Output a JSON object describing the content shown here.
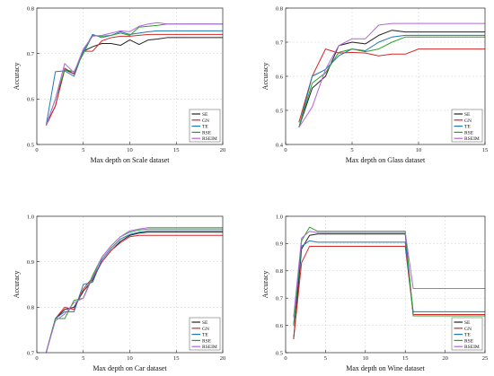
{
  "chart_data": [
    {
      "type": "line",
      "xlabel": "Max depth on Scale dataset",
      "ylabel": "Accuracy",
      "xlim": [
        0,
        20
      ],
      "ylim": [
        0.5,
        0.8
      ],
      "xticks": [
        0,
        5,
        10,
        15,
        20
      ],
      "yticks": [
        0.5,
        0.6,
        0.7,
        0.8
      ],
      "ytick_labels": [
        "0.5",
        "0.6",
        "0.7",
        "0.8"
      ],
      "grid": true,
      "legend": "bottom-right",
      "series": [
        {
          "name": "SE",
          "color": "#222222",
          "x": [
            1,
            2,
            3,
            4,
            5,
            6,
            7,
            8,
            9,
            10,
            11,
            12,
            13,
            14,
            15,
            16,
            17,
            18,
            19,
            20
          ],
          "y": [
            0.542,
            0.585,
            0.665,
            0.655,
            0.705,
            0.715,
            0.722,
            0.722,
            0.718,
            0.73,
            0.72,
            0.73,
            0.732,
            0.735,
            0.735,
            0.735,
            0.735,
            0.735,
            0.735,
            0.735
          ]
        },
        {
          "name": "GN",
          "color": "#d62728",
          "x": [
            1,
            2,
            3,
            4,
            5,
            6,
            7,
            8,
            9,
            10,
            11,
            12,
            13,
            14,
            15,
            16,
            17,
            18,
            19,
            20
          ],
          "y": [
            0.542,
            0.585,
            0.668,
            0.655,
            0.705,
            0.705,
            0.728,
            0.735,
            0.738,
            0.738,
            0.74,
            0.742,
            0.742,
            0.742,
            0.742,
            0.742,
            0.742,
            0.742,
            0.742,
            0.742
          ]
        },
        {
          "name": "TE",
          "color": "#1f77b4",
          "x": [
            1,
            2,
            3,
            4,
            5,
            6,
            7,
            8,
            9,
            10,
            11,
            12,
            13,
            14,
            15,
            16,
            17,
            18,
            19,
            20
          ],
          "y": [
            0.542,
            0.66,
            0.662,
            0.65,
            0.705,
            0.742,
            0.735,
            0.74,
            0.748,
            0.742,
            0.745,
            0.748,
            0.75,
            0.75,
            0.75,
            0.75,
            0.75,
            0.75,
            0.75,
            0.75
          ]
        },
        {
          "name": "RSE",
          "color": "#2ca02c",
          "x": [
            1,
            2,
            3,
            4,
            5,
            6,
            7,
            8,
            9,
            10,
            11,
            12,
            13,
            14,
            15,
            16,
            17,
            18,
            19,
            20
          ],
          "y": [
            0.542,
            0.6,
            0.665,
            0.66,
            0.7,
            0.74,
            0.738,
            0.74,
            0.745,
            0.74,
            0.758,
            0.76,
            0.762,
            0.765,
            0.765,
            0.765,
            0.765,
            0.765,
            0.765,
            0.765
          ]
        },
        {
          "name": "RSEIM",
          "color": "#b266dd",
          "x": [
            1,
            2,
            3,
            4,
            5,
            6,
            7,
            8,
            9,
            10,
            11,
            12,
            13,
            14,
            15,
            16,
            17,
            18,
            19,
            20
          ],
          "y": [
            0.542,
            0.6,
            0.678,
            0.658,
            0.71,
            0.738,
            0.74,
            0.745,
            0.75,
            0.748,
            0.76,
            0.765,
            0.768,
            0.765,
            0.765,
            0.765,
            0.765,
            0.765,
            0.765,
            0.765
          ]
        }
      ]
    },
    {
      "type": "line",
      "xlabel": "Max depth on Glass dataset",
      "ylabel": "Accuracy",
      "xlim": [
        0,
        15
      ],
      "ylim": [
        0.4,
        0.8
      ],
      "xticks": [
        0,
        5,
        10,
        15
      ],
      "yticks": [
        0.4,
        0.5,
        0.6,
        0.7,
        0.8
      ],
      "ytick_labels": [
        "0.4",
        "0.5",
        "0.6",
        "0.7",
        "0.8"
      ],
      "grid": true,
      "legend": "bottom-right",
      "series": [
        {
          "name": "SE",
          "color": "#222222",
          "x": [
            1,
            2,
            3,
            4,
            5,
            6,
            7,
            8,
            9,
            10,
            11,
            12,
            13,
            14,
            15
          ],
          "y": [
            0.45,
            0.565,
            0.6,
            0.69,
            0.7,
            0.695,
            0.72,
            0.735,
            0.73,
            0.73,
            0.73,
            0.73,
            0.73,
            0.73,
            0.73
          ]
        },
        {
          "name": "GN",
          "color": "#d62728",
          "x": [
            1,
            2,
            3,
            4,
            5,
            6,
            7,
            8,
            9,
            10,
            11,
            12,
            13,
            14,
            15
          ],
          "y": [
            0.465,
            0.6,
            0.68,
            0.668,
            0.67,
            0.668,
            0.66,
            0.665,
            0.665,
            0.68,
            0.68,
            0.68,
            0.68,
            0.68,
            0.68
          ]
        },
        {
          "name": "TE",
          "color": "#1f77b4",
          "x": [
            1,
            2,
            3,
            4,
            5,
            6,
            7,
            8,
            9,
            10,
            11,
            12,
            13,
            14,
            15
          ],
          "y": [
            0.45,
            0.6,
            0.62,
            0.66,
            0.68,
            0.675,
            0.7,
            0.715,
            0.72,
            0.72,
            0.72,
            0.72,
            0.72,
            0.72,
            0.72
          ]
        },
        {
          "name": "RSE",
          "color": "#2ca02c",
          "x": [
            1,
            2,
            3,
            4,
            5,
            6,
            7,
            8,
            9,
            10,
            11,
            12,
            13,
            14,
            15
          ],
          "y": [
            0.45,
            0.58,
            0.61,
            0.67,
            0.68,
            0.672,
            0.68,
            0.7,
            0.715,
            0.715,
            0.715,
            0.715,
            0.715,
            0.715,
            0.715
          ]
        },
        {
          "name": "RSEIM",
          "color": "#b266dd",
          "x": [
            1,
            2,
            3,
            4,
            5,
            6,
            7,
            8,
            9,
            10,
            11,
            12,
            13,
            14,
            15
          ],
          "y": [
            0.45,
            0.51,
            0.62,
            0.69,
            0.71,
            0.71,
            0.75,
            0.755,
            0.755,
            0.755,
            0.755,
            0.755,
            0.755,
            0.755,
            0.755
          ]
        }
      ]
    },
    {
      "type": "line",
      "xlabel": "Max depth on Car dataset",
      "ylabel": "Accuracy",
      "xlim": [
        0,
        20
      ],
      "ylim": [
        0.7,
        1.0
      ],
      "xticks": [
        0,
        5,
        10,
        15,
        20
      ],
      "yticks": [
        0.7,
        0.8,
        0.9,
        1.0
      ],
      "ytick_labels": [
        "0.7",
        "0.8",
        "0.9",
        "1.0"
      ],
      "grid": true,
      "legend": "bottom-right",
      "series": [
        {
          "name": "SE",
          "color": "#222222",
          "x": [
            1,
            2,
            3,
            4,
            5,
            6,
            7,
            8,
            9,
            10,
            11,
            12,
            13,
            14,
            15,
            16,
            17,
            18,
            19,
            20
          ],
          "y": [
            0.7,
            0.775,
            0.795,
            0.8,
            0.835,
            0.86,
            0.9,
            0.925,
            0.945,
            0.958,
            0.963,
            0.965,
            0.965,
            0.965,
            0.965,
            0.965,
            0.965,
            0.965,
            0.965,
            0.965
          ]
        },
        {
          "name": "GN",
          "color": "#d62728",
          "x": [
            1,
            2,
            3,
            4,
            5,
            6,
            7,
            8,
            9,
            10,
            11,
            12,
            13,
            14,
            15,
            16,
            17,
            18,
            19,
            20
          ],
          "y": [
            0.7,
            0.775,
            0.8,
            0.795,
            0.84,
            0.865,
            0.9,
            0.925,
            0.942,
            0.955,
            0.958,
            0.958,
            0.958,
            0.958,
            0.958,
            0.958,
            0.958,
            0.958,
            0.958,
            0.958
          ]
        },
        {
          "name": "TE",
          "color": "#1f77b4",
          "x": [
            1,
            2,
            3,
            4,
            5,
            6,
            7,
            8,
            9,
            10,
            11,
            12,
            13,
            14,
            15,
            16,
            17,
            18,
            19,
            20
          ],
          "y": [
            0.7,
            0.775,
            0.79,
            0.79,
            0.85,
            0.855,
            0.905,
            0.93,
            0.95,
            0.96,
            0.965,
            0.968,
            0.968,
            0.968,
            0.968,
            0.968,
            0.968,
            0.968,
            0.968,
            0.968
          ]
        },
        {
          "name": "RSE",
          "color": "#2ca02c",
          "x": [
            1,
            2,
            3,
            4,
            5,
            6,
            7,
            8,
            9,
            10,
            11,
            12,
            13,
            14,
            15,
            16,
            17,
            18,
            19,
            20
          ],
          "y": [
            0.7,
            0.775,
            0.775,
            0.815,
            0.82,
            0.87,
            0.91,
            0.935,
            0.955,
            0.965,
            0.97,
            0.972,
            0.972,
            0.972,
            0.972,
            0.972,
            0.972,
            0.972,
            0.972,
            0.972
          ]
        },
        {
          "name": "RSEIM",
          "color": "#b266dd",
          "x": [
            1,
            2,
            3,
            4,
            5,
            6,
            7,
            8,
            9,
            10,
            11,
            12,
            13,
            14,
            15,
            16,
            17,
            18,
            19,
            20
          ],
          "y": [
            0.7,
            0.77,
            0.785,
            0.81,
            0.82,
            0.865,
            0.91,
            0.935,
            0.955,
            0.968,
            0.972,
            0.975,
            0.975,
            0.975,
            0.975,
            0.975,
            0.975,
            0.975,
            0.975,
            0.975
          ]
        }
      ]
    },
    {
      "type": "line",
      "xlabel": "Max depth on Wine dataset",
      "ylabel": "Accuracy",
      "xlim": [
        0,
        25
      ],
      "ylim": [
        0.5,
        1.0
      ],
      "xticks": [
        0,
        5,
        10,
        15,
        20,
        25
      ],
      "yticks": [
        0.5,
        0.6,
        0.7,
        0.8,
        0.9,
        1.0
      ],
      "ytick_labels": [
        "0.5",
        "0.6",
        "0.7",
        "0.8",
        "0.9",
        "1.0"
      ],
      "grid": true,
      "legend": "bottom-right",
      "series": [
        {
          "name": "SE",
          "color": "#222222",
          "x": [
            1,
            2,
            3,
            4,
            5,
            15,
            16,
            25
          ],
          "y": [
            0.55,
            0.88,
            0.93,
            0.935,
            0.935,
            0.935,
            0.635,
            0.635
          ]
        },
        {
          "name": "GN",
          "color": "#d62728",
          "x": [
            1,
            2,
            3,
            4,
            5,
            15,
            16,
            25
          ],
          "y": [
            0.55,
            0.83,
            0.89,
            0.89,
            0.89,
            0.89,
            0.64,
            0.64
          ]
        },
        {
          "name": "TE",
          "color": "#1f77b4",
          "x": [
            1,
            2,
            3,
            4,
            5,
            15,
            16,
            25
          ],
          "y": [
            0.6,
            0.89,
            0.91,
            0.905,
            0.905,
            0.905,
            0.65,
            0.65
          ]
        },
        {
          "name": "RSE",
          "color": "#2ca02c",
          "x": [
            1,
            2,
            3,
            4,
            5,
            15,
            16,
            25
          ],
          "y": [
            0.6,
            0.91,
            0.96,
            0.945,
            0.945,
            0.945,
            0.635,
            0.635
          ]
        },
        {
          "name": "RSEIM",
          "color": "#b266dd",
          "x": [
            1,
            2,
            3,
            4,
            5,
            15,
            16,
            25
          ],
          "y": [
            0.63,
            0.92,
            0.945,
            0.94,
            0.94,
            0.94,
            0.735,
            0.735
          ]
        }
      ]
    }
  ]
}
